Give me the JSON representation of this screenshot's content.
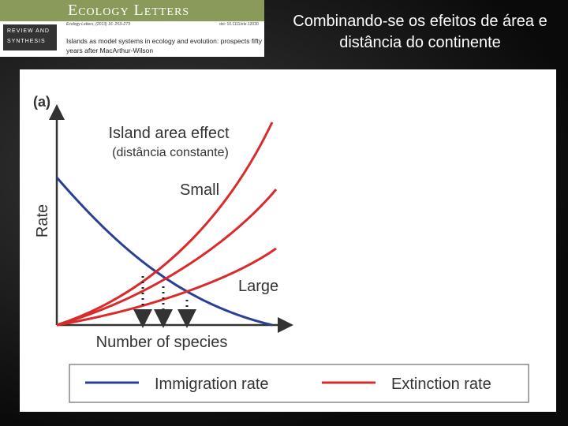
{
  "header": {
    "journal": "Ecology Letters",
    "section": "REVIEW AND SYNTHESIS",
    "citation": "Ecology Letters, (2013) 16: 253–273",
    "doi": "doi: 10.1111/ele.12030",
    "article_title": "Islands as model systems in ecology and evolution: prospects fifty years after MacArthur-Wilson"
  },
  "slide": {
    "title": "Combinando-se os efeitos de área e distância do continente"
  },
  "figure": {
    "panel": "(a)",
    "y_label": "Rate",
    "x_label": "Number of species",
    "title": "Island area effect",
    "subtitle": "(distância constante)",
    "label_small": "Small",
    "label_large": "Large",
    "legend": [
      "Immigration rate",
      "Extinction rate"
    ]
  }
}
